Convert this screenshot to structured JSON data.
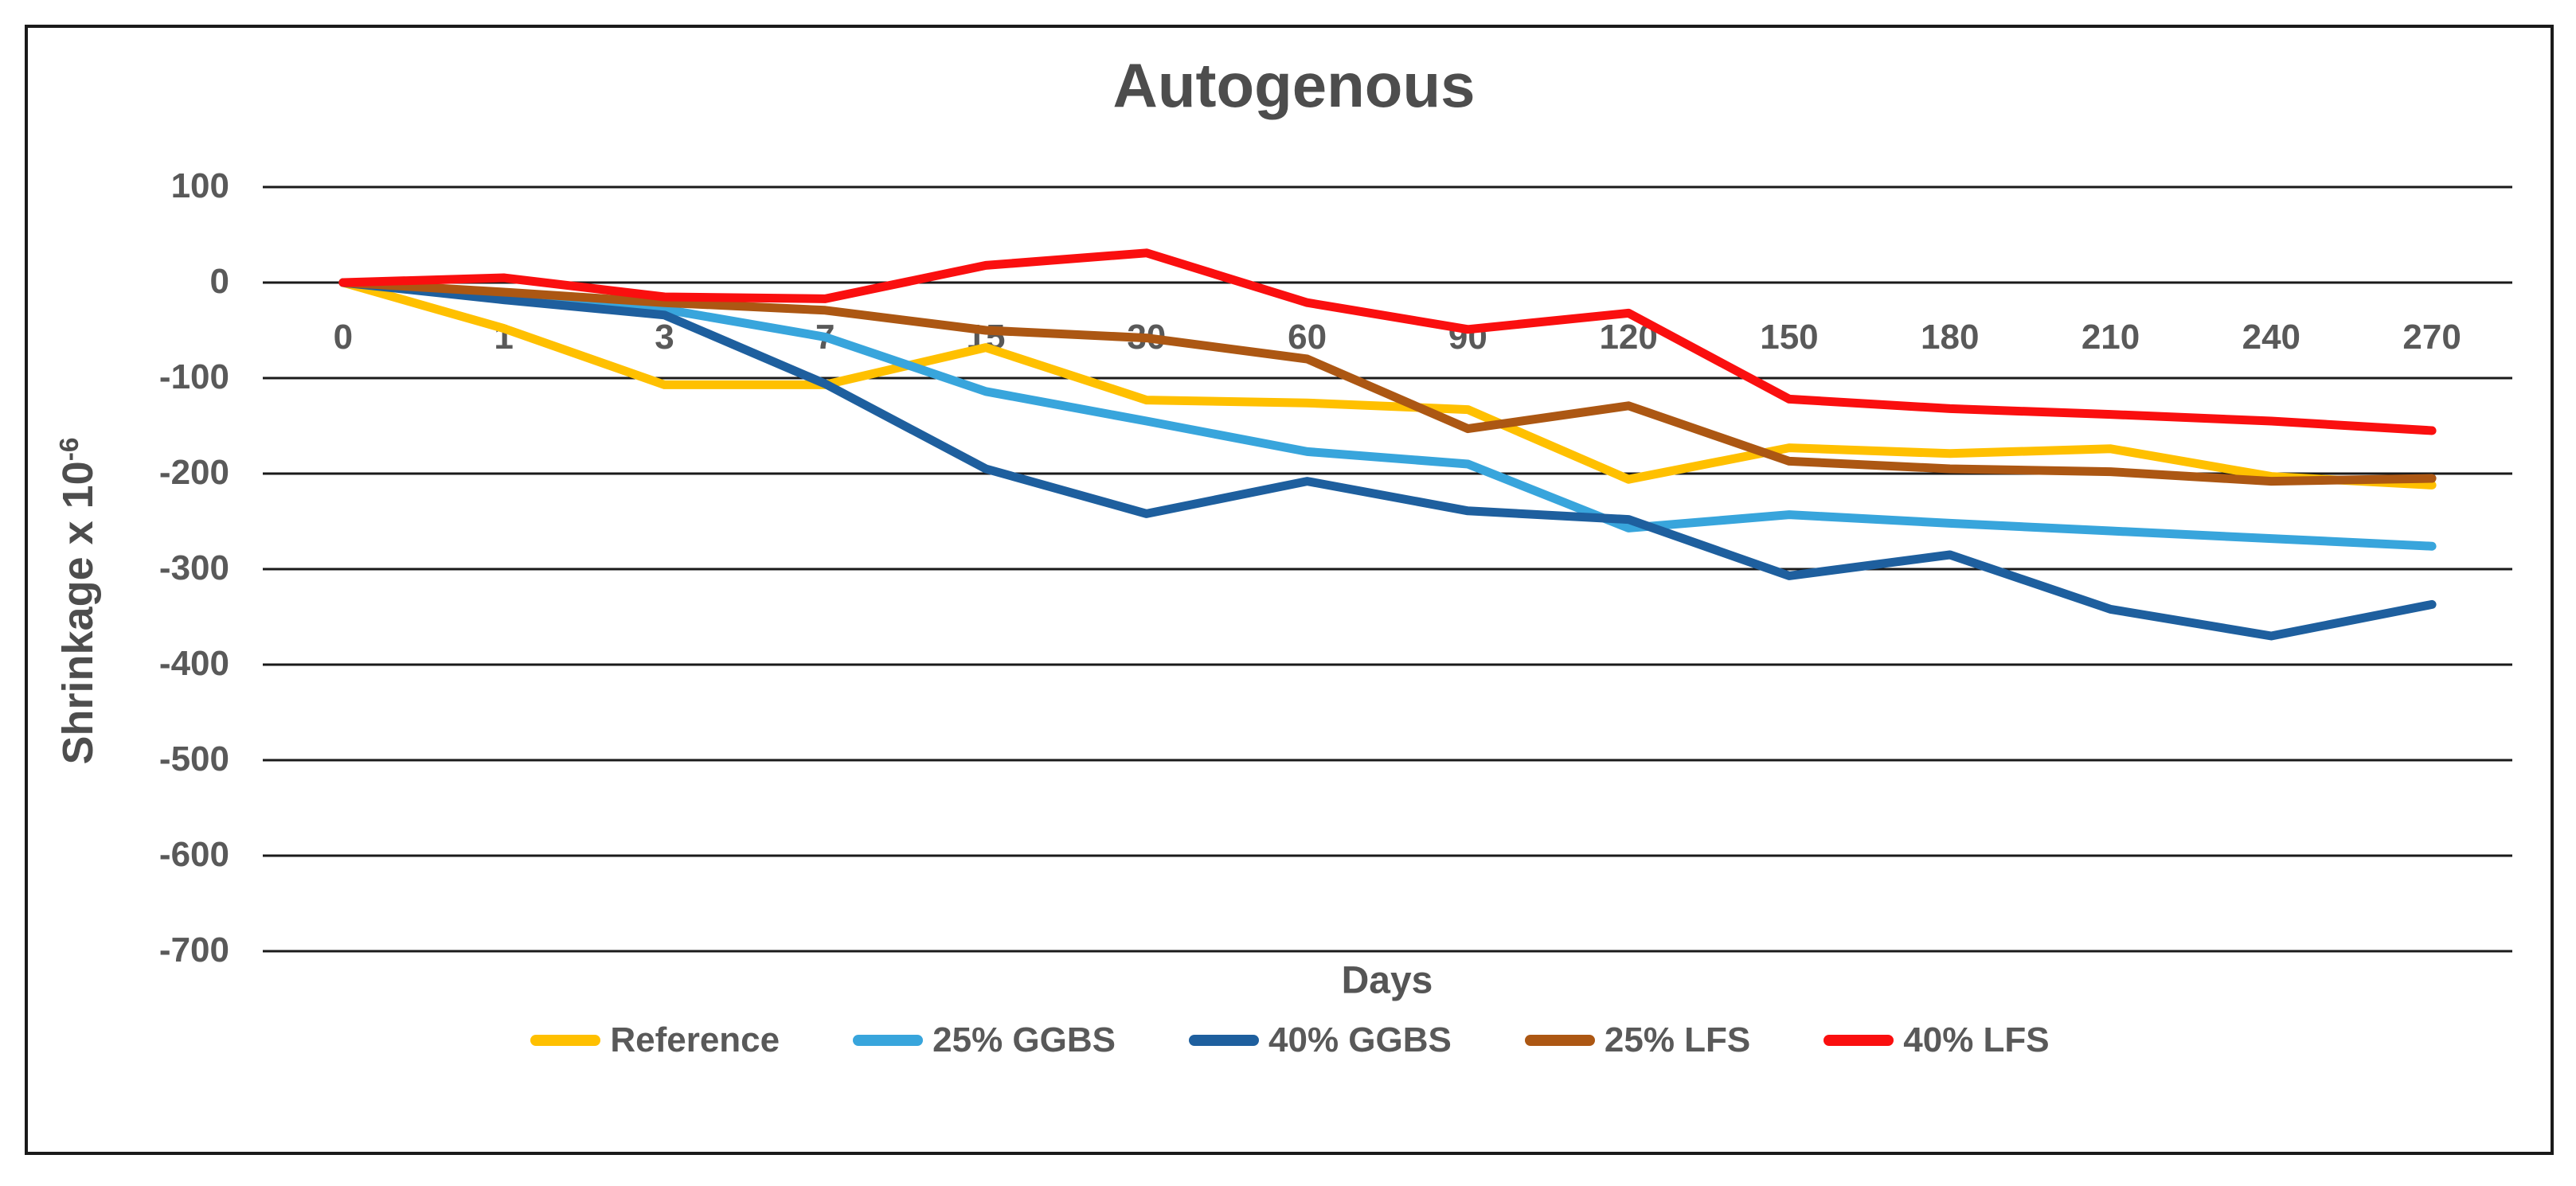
{
  "title": "Autogenous",
  "y_axis": {
    "title_main": "Shrinkage x 10",
    "title_sup": "-6",
    "ticks": [
      "100",
      "0",
      "-100",
      "-200",
      "-300",
      "-400",
      "-500",
      "-600",
      "-700"
    ]
  },
  "x_axis": {
    "title": "Days",
    "ticks": [
      "0",
      "1",
      "3",
      "7",
      "15",
      "30",
      "60",
      "90",
      "120",
      "150",
      "180",
      "210",
      "240",
      "270"
    ]
  },
  "colors": {
    "grid": "#1a1a1a",
    "frame_border": "#1a1a1a",
    "title_text": "#4d4d4d",
    "axis_text": "#595959"
  },
  "chart_data": {
    "type": "line",
    "title": "Autogenous",
    "xlabel": "Days",
    "ylabel": "Shrinkage x 10^-6",
    "x_scale": "categorical",
    "x": [
      0,
      1,
      3,
      7,
      15,
      30,
      60,
      90,
      120,
      150,
      180,
      210,
      240,
      270
    ],
    "ylim": [
      -700,
      100
    ],
    "ytick_interval": 100,
    "gridlines": "horizontal",
    "legend_position": "bottom",
    "series": [
      {
        "name": "Reference",
        "color": "#FFC000",
        "values": [
          0,
          -48,
          -107,
          -107,
          -68,
          -123,
          -126,
          -133,
          -206,
          -173,
          -179,
          -174,
          -203,
          -212
        ]
      },
      {
        "name": "25% GGBS",
        "color": "#38A5DC",
        "values": [
          0,
          -15,
          -28,
          -57,
          -114,
          -145,
          -177,
          -190,
          -257,
          -243,
          -252,
          -260,
          -268,
          -276
        ]
      },
      {
        "name": "40% GGBS",
        "color": "#1E5F9E",
        "values": [
          0,
          -18,
          -34,
          -106,
          -195,
          -242,
          -208,
          -239,
          -248,
          -307,
          -285,
          -342,
          -370,
          -337
        ]
      },
      {
        "name": "25% LFS",
        "color": "#AC5713",
        "values": [
          0,
          -10,
          -21,
          -29,
          -50,
          -58,
          -80,
          -153,
          -129,
          -187,
          -195,
          -198,
          -208,
          -205
        ]
      },
      {
        "name": "40% LFS",
        "color": "#FA0F0F",
        "values": [
          0,
          5,
          -15,
          -17,
          18,
          31,
          -21,
          -49,
          -32,
          -122,
          -132,
          -138,
          -145,
          -155
        ]
      }
    ]
  }
}
